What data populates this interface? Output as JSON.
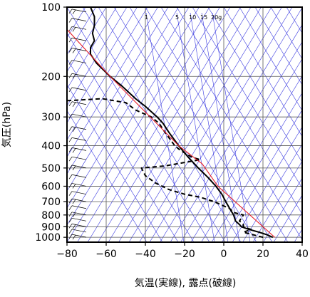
{
  "chart_data": {
    "type": "line",
    "title": "",
    "xlabel": "気温(実線), 露点(破線)",
    "ylabel": "気圧(hPa)",
    "xlim": [
      -80,
      40
    ],
    "ylim": [
      1050,
      100
    ],
    "y_scale": "log",
    "grid": true,
    "x_ticks": [
      -80,
      -60,
      -40,
      -20,
      0,
      20,
      40
    ],
    "x_tick_labels": [
      "−80",
      "−60",
      "−40",
      "−20",
      "0",
      "20",
      "40"
    ],
    "y_ticks": [
      100,
      200,
      300,
      400,
      500,
      600,
      700,
      800,
      900,
      1000
    ],
    "y_tick_labels": [
      "100",
      "200",
      "300",
      "400",
      "500",
      "600",
      "700",
      "800",
      "900",
      "1000"
    ],
    "mixing_ratio_labels": [
      "1",
      "5",
      "10",
      "15",
      "20g"
    ],
    "colors": {
      "temperature": "#000000",
      "dewpoint": "#000000",
      "reference": "#e8202a",
      "background_lines": "#3a3ae0",
      "grid": "#555555",
      "wind": "#000000"
    },
    "series": [
      {
        "role": "temperature",
        "style": "solid",
        "points": [
          [
            25,
            1000
          ],
          [
            22,
            975
          ],
          [
            18,
            950
          ],
          [
            13,
            925
          ],
          [
            9,
            900
          ],
          [
            8,
            880
          ],
          [
            6,
            850
          ],
          [
            5,
            800
          ],
          [
            3,
            750
          ],
          [
            1,
            700
          ],
          [
            -1,
            650
          ],
          [
            -4,
            600
          ],
          [
            -8,
            550
          ],
          [
            -13,
            500
          ],
          [
            -18,
            450
          ],
          [
            -21,
            420
          ],
          [
            -23,
            400
          ],
          [
            -28,
            350
          ],
          [
            -31,
            320
          ],
          [
            -34,
            300
          ],
          [
            -40,
            270
          ],
          [
            -45,
            250
          ],
          [
            -52,
            220
          ],
          [
            -58,
            200
          ],
          [
            -65,
            175
          ],
          [
            -68,
            160
          ],
          [
            -68,
            150
          ],
          [
            -66,
            140
          ],
          [
            -67,
            130
          ],
          [
            -66,
            120
          ],
          [
            -66,
            110
          ],
          [
            -68,
            100
          ]
        ]
      },
      {
        "role": "dewpoint",
        "style": "dashed",
        "points": [
          [
            20,
            1000
          ],
          [
            15,
            975
          ],
          [
            10,
            950
          ],
          [
            14,
            925
          ],
          [
            10,
            900
          ],
          [
            10,
            880
          ],
          [
            8,
            850
          ],
          [
            10,
            800
          ],
          [
            5,
            780
          ],
          [
            3,
            750
          ],
          [
            -5,
            700
          ],
          [
            -12,
            670
          ],
          [
            -20,
            650
          ],
          [
            -28,
            620
          ],
          [
            -35,
            580
          ],
          [
            -40,
            540
          ],
          [
            -42,
            500
          ],
          [
            -30,
            490
          ],
          [
            -12,
            460
          ],
          [
            -16,
            450
          ],
          [
            -22,
            420
          ],
          [
            -25,
            400
          ],
          [
            -30,
            350
          ],
          [
            -33,
            320
          ],
          [
            -37,
            300
          ],
          [
            -45,
            280
          ],
          [
            -50,
            260
          ],
          [
            -62,
            250
          ],
          [
            -80,
            255
          ]
        ]
      },
      {
        "role": "reference",
        "style": "solid",
        "points": [
          [
            26,
            1000
          ],
          [
            -3,
            600
          ],
          [
            -11,
            480
          ],
          [
            -23,
            400
          ],
          [
            -58,
            200
          ],
          [
            -80,
            125
          ]
        ]
      }
    ]
  }
}
